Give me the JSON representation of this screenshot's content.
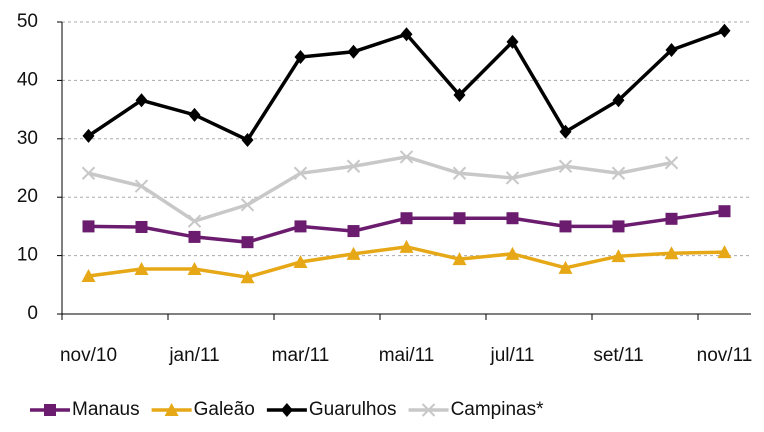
{
  "chart_data": {
    "type": "line",
    "categories": [
      "nov/10",
      null,
      "jan/11",
      null,
      "mar/11",
      null,
      "mai/11",
      null,
      "jul/11",
      null,
      "set/11",
      null,
      "nov/11"
    ],
    "series": [
      {
        "name": "Manaus",
        "color": "#6b1c6e",
        "marker": "square",
        "values": [
          15,
          14.9,
          13.2,
          12.3,
          15,
          14.2,
          16.4,
          16.4,
          16.4,
          15,
          15,
          16.3,
          17.6
        ]
      },
      {
        "name": "Galeão",
        "color": "#e6a817",
        "marker": "triangle",
        "values": [
          6.5,
          7.7,
          7.7,
          6.3,
          8.9,
          10.3,
          11.5,
          9.4,
          10.3,
          7.9,
          9.9,
          10.4,
          10.6
        ]
      },
      {
        "name": "Guarulhos",
        "color": "#000000",
        "marker": "diamond",
        "values": [
          30.5,
          36.6,
          34.1,
          29.8,
          44,
          44.9,
          47.9,
          37.5,
          46.6,
          31.2,
          36.6,
          45.2,
          48.5
        ]
      },
      {
        "name": "Campinas*",
        "color": "#c8c8c8",
        "marker": "x",
        "values": [
          24.1,
          21.9,
          15.9,
          18.7,
          24.1,
          25.3,
          26.9,
          24.1,
          23.3,
          25.3,
          24.1,
          25.9,
          null
        ]
      }
    ],
    "ylim": [
      0,
      50
    ],
    "yticks": [
      0,
      10,
      20,
      30,
      40,
      50
    ],
    "grid": true,
    "legend": "bottom"
  }
}
